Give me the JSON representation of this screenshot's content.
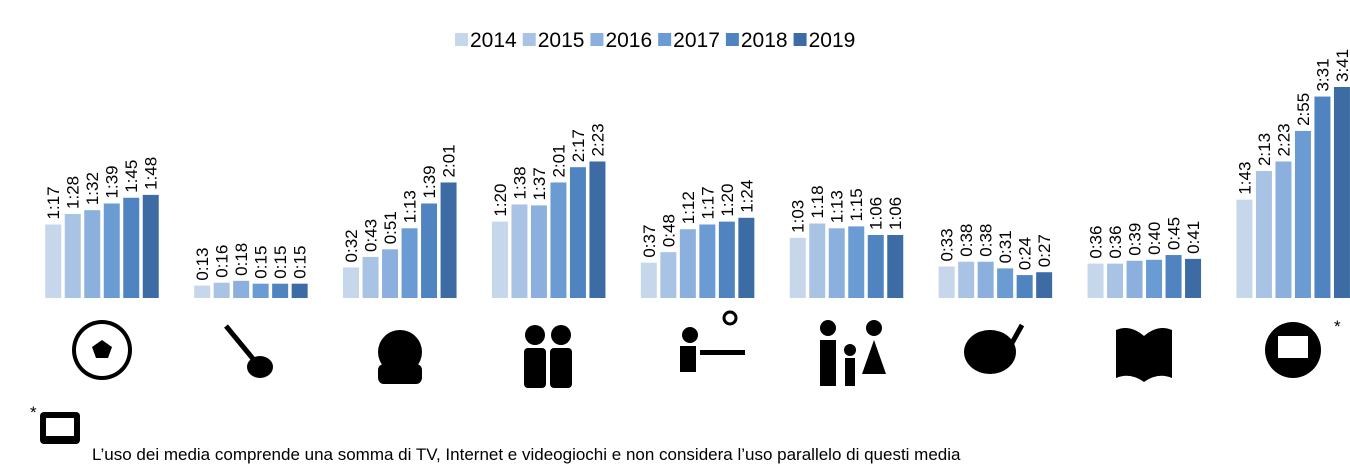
{
  "chart_data": {
    "type": "bar",
    "categories": [
      null,
      null,
      null,
      null,
      null,
      null,
      null,
      null,
      null
    ],
    "series": [
      {
        "name": "2014",
        "color": "#c6d6eb",
        "values": [
          77,
          13,
          32,
          80,
          37,
          63,
          33,
          36,
          103
        ],
        "value_labels": [
          "1:17",
          "0:13",
          "0:32",
          "1:20",
          "0:37",
          "1:03",
          "0:33",
          "0:36",
          "1:43"
        ]
      },
      {
        "name": "2015",
        "color": "#a9c3e4",
        "values": [
          88,
          16,
          43,
          98,
          48,
          78,
          38,
          36,
          133
        ],
        "value_labels": [
          "1:28",
          "0:16",
          "0:43",
          "1:38",
          "0:48",
          "1:18",
          "0:38",
          "0:36",
          "2:13"
        ]
      },
      {
        "name": "2016",
        "color": "#8cb0dd",
        "values": [
          92,
          18,
          51,
          97,
          72,
          73,
          38,
          39,
          143
        ],
        "value_labels": [
          "1:32",
          "0:18",
          "0:51",
          "1:37",
          "1:12",
          "1:13",
          "0:38",
          "0:39",
          "2:23"
        ]
      },
      {
        "name": "2017",
        "color": "#6b9bd3",
        "values": [
          99,
          15,
          73,
          121,
          77,
          75,
          31,
          40,
          175
        ],
        "value_labels": [
          "1:39",
          "0:15",
          "1:13",
          "2:01",
          "1:17",
          "1:15",
          "0:31",
          "0:40",
          "2:55"
        ]
      },
      {
        "name": "2018",
        "color": "#4f84c1",
        "values": [
          105,
          15,
          99,
          137,
          80,
          66,
          24,
          45,
          211
        ],
        "value_labels": [
          "1:45",
          "0:15",
          "1:39",
          "2:17",
          "1:20",
          "1:06",
          "0:24",
          "0:45",
          "3:31"
        ]
      },
      {
        "name": "2019",
        "color": "#3d6ca5",
        "values": [
          108,
          15,
          121,
          143,
          84,
          66,
          27,
          41,
          221
        ],
        "value_labels": [
          "1:48",
          "0:15",
          "2:01",
          "2:23",
          "1:24",
          "1:06",
          "0:27",
          "0:41",
          "3:41"
        ]
      }
    ],
    "legend": "top",
    "annotations": {
      "asterisk": "*",
      "footnote": "L’uso dei media comprende una somma di TV, Internet e videogiochi e non considera l’uso parallelo di questi media"
    }
  }
}
